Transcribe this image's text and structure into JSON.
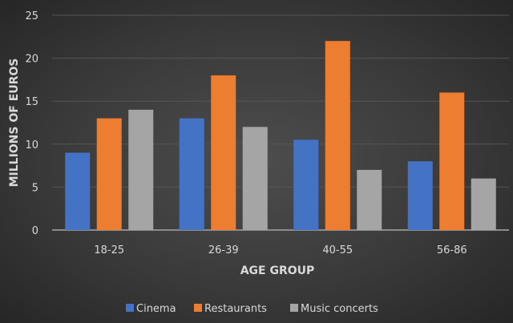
{
  "chart_data": {
    "type": "bar",
    "title": "",
    "xlabel": "AGE GROUP",
    "ylabel": "MILLIONS OF EUROS",
    "categories": [
      "18-25",
      "26-39",
      "40-55",
      "56-86"
    ],
    "series": [
      {
        "name": "Cinema",
        "color": "#4472c4",
        "values": [
          9,
          13,
          10.5,
          8
        ]
      },
      {
        "name": "Restaurants",
        "color": "#ed7d31",
        "values": [
          13,
          18,
          22,
          16
        ]
      },
      {
        "name": "Music concerts",
        "color": "#a5a5a5",
        "values": [
          14,
          12,
          7,
          6
        ]
      }
    ],
    "ylim": [
      0,
      25
    ],
    "yticks": [
      "0",
      "5",
      "10",
      "15",
      "20",
      "25"
    ],
    "grid": true,
    "legend": "bottom"
  }
}
